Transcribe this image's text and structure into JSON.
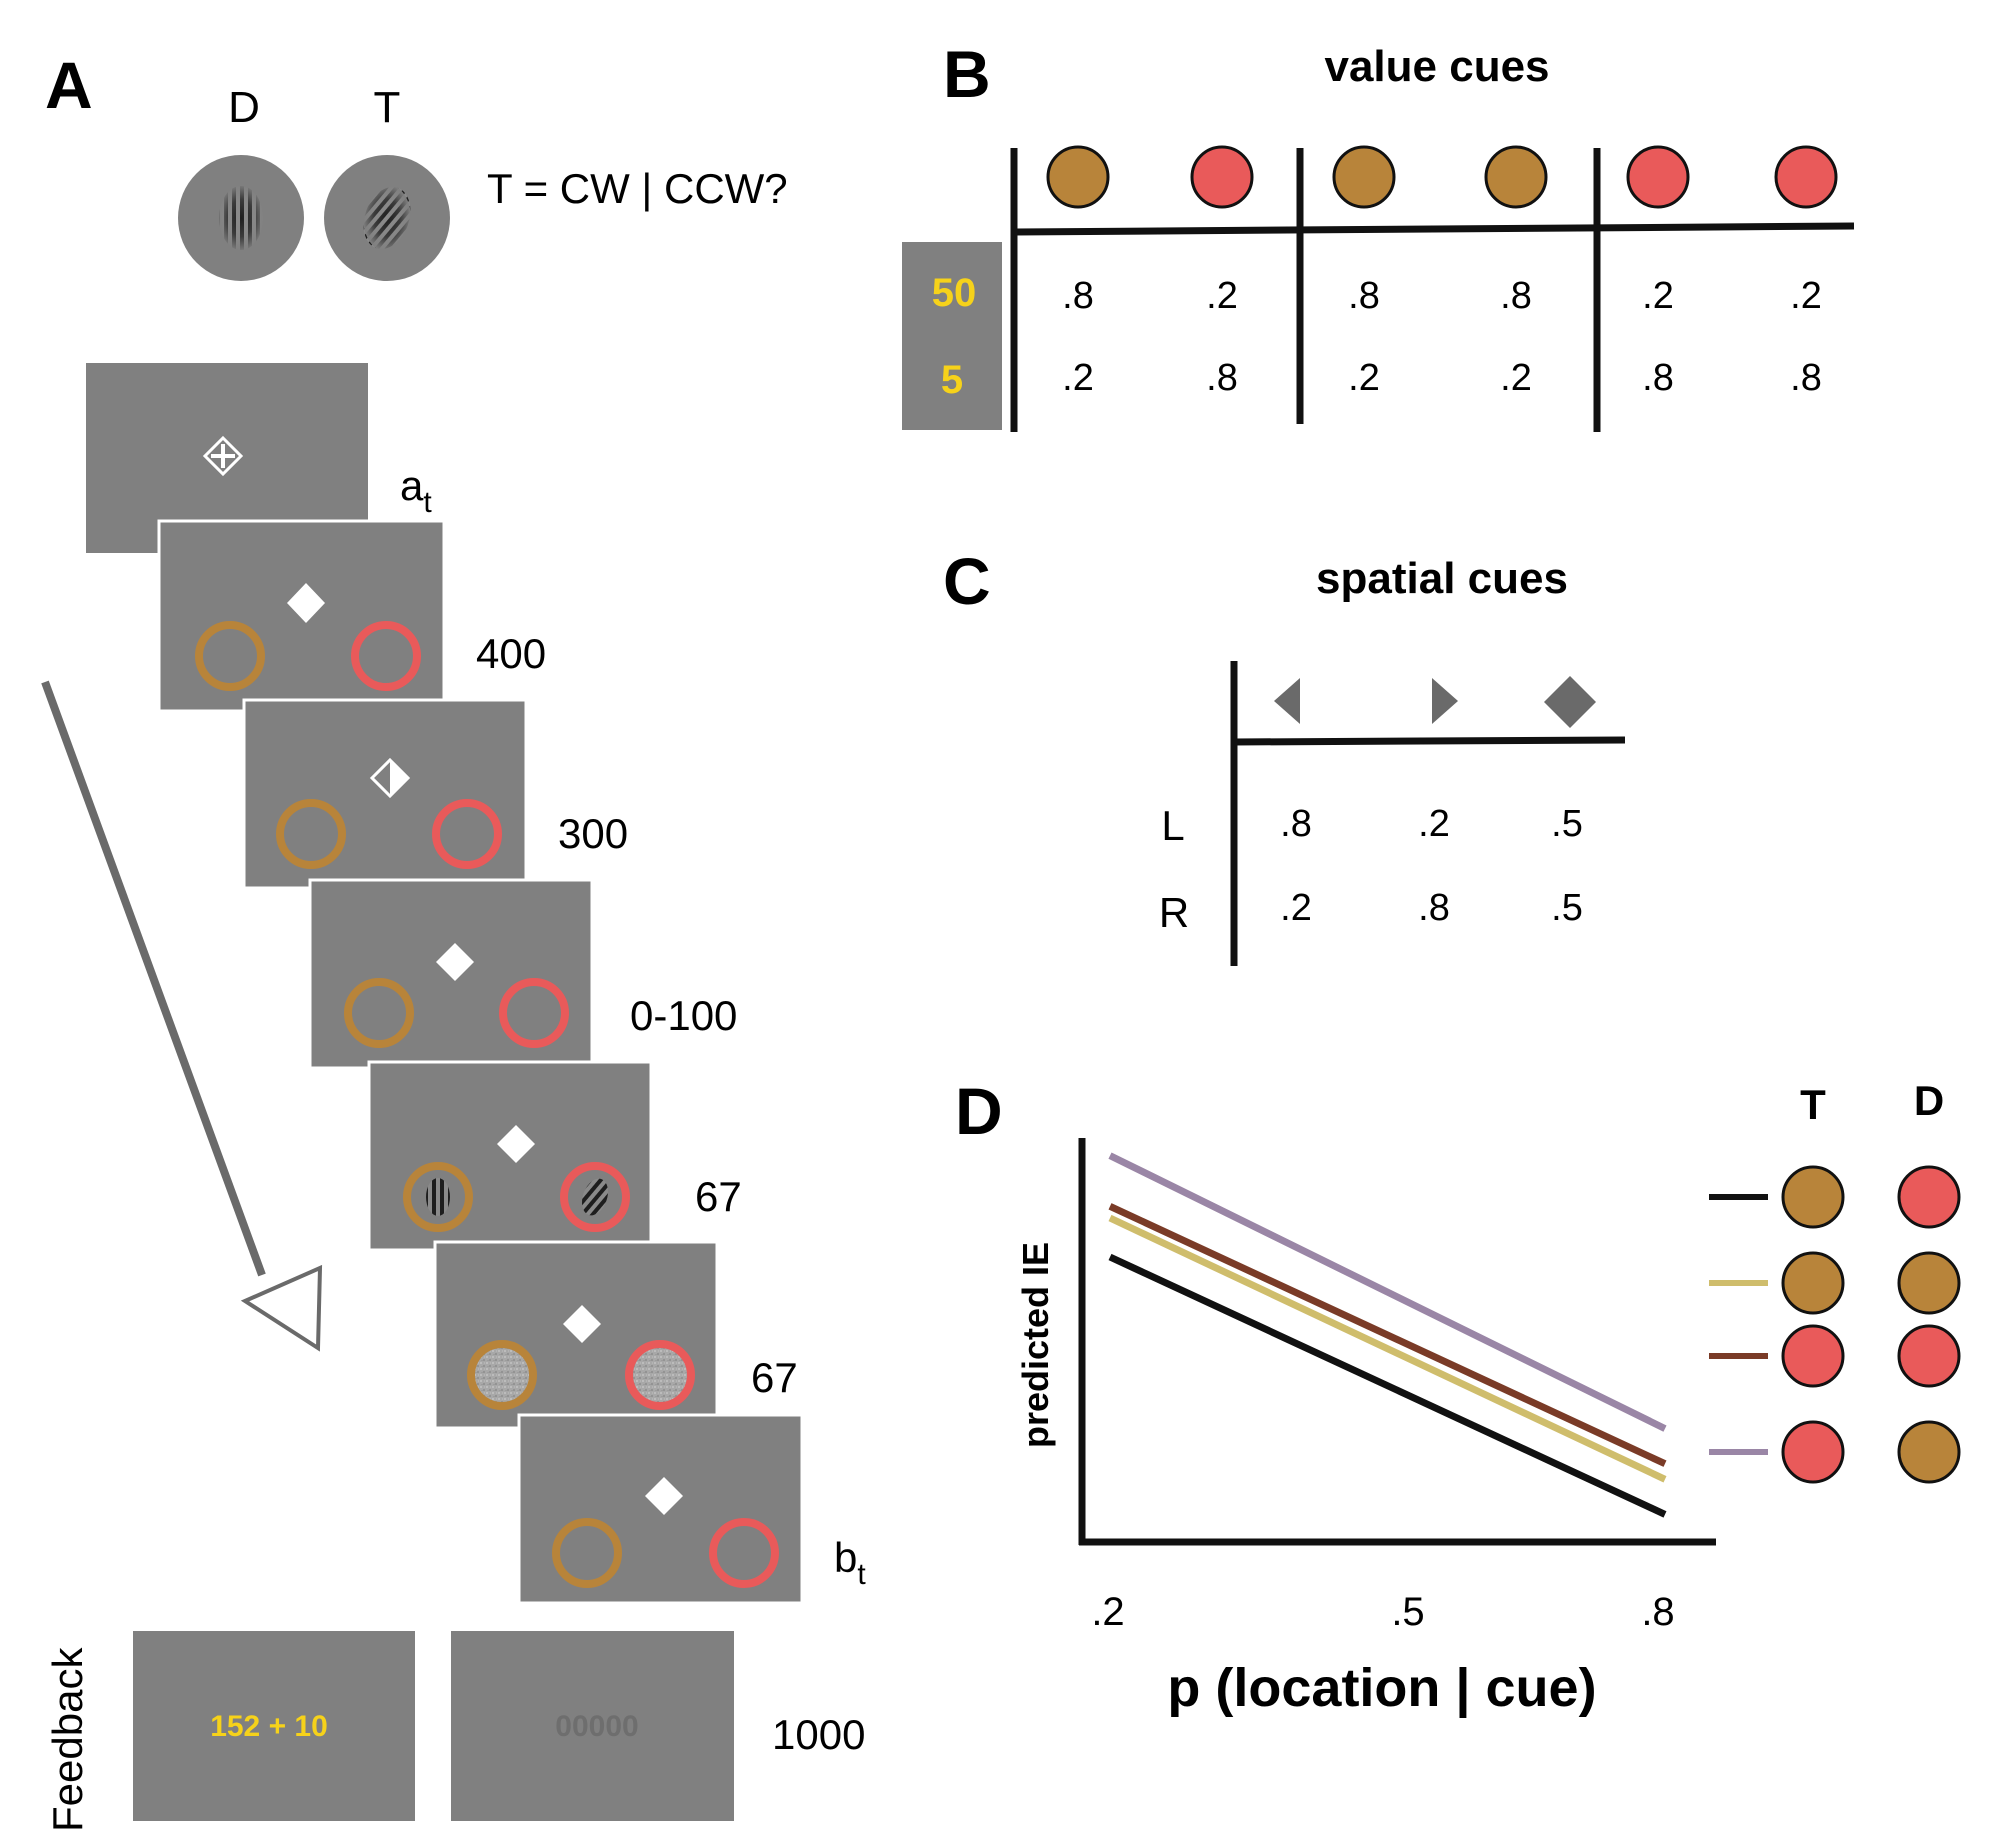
{
  "panels": {
    "a": "A",
    "b": "B",
    "c": "C",
    "d": "D"
  },
  "panel_a": {
    "distractor_label": "D",
    "target_label": "T",
    "question": "T = CW | CCW?",
    "a_label": "a",
    "a_sub": "t",
    "b_label": "b",
    "b_sub": "t",
    "durations": [
      "400",
      "300",
      "0-100",
      "67",
      "67"
    ],
    "feedback_label": "Feedback",
    "feedback_reward": "152 + 10",
    "feedback_zero": "00000",
    "feedback_duration": "1000"
  },
  "panel_b": {
    "title": "value cues",
    "row_labels": [
      "50",
      "5"
    ],
    "cue_colors": [
      "bronze",
      "red",
      "bronze",
      "bronze",
      "red",
      "red"
    ],
    "row_50": [
      ".8",
      ".2",
      ".8",
      ".8",
      ".2",
      ".2"
    ],
    "row_5": [
      ".2",
      ".8",
      ".2",
      ".2",
      ".8",
      ".8"
    ]
  },
  "panel_c": {
    "title": "spatial cues",
    "cue_icons": [
      "left-arrow-icon",
      "right-arrow-icon",
      "diamond-icon"
    ],
    "row_labels": [
      "L",
      "R"
    ],
    "row_L": [
      ".8",
      ".2",
      ".5"
    ],
    "row_R": [
      ".2",
      ".8",
      ".5"
    ]
  },
  "panel_d": {
    "legend_header_t": "T",
    "legend_header_d": "D"
  },
  "chart_data": {
    "type": "line",
    "xlabel": "p (location | cue)",
    "ylabel": "predicted IE",
    "x_ticks": [
      ".2",
      ".5",
      ".8"
    ],
    "xlim": [
      0.2,
      0.8
    ],
    "ylim": [
      0,
      1
    ],
    "grid": false,
    "legend_position": "right",
    "series": [
      {
        "color": "#9a86a6",
        "T": "red",
        "D": "bronze",
        "x": [
          0.2,
          0.8
        ],
        "y": [
          0.96,
          0.26
        ]
      },
      {
        "color": "#7a3b27",
        "T": "red",
        "D": "red",
        "x": [
          0.2,
          0.8
        ],
        "y": [
          0.83,
          0.17
        ]
      },
      {
        "color": "#cfbd6c",
        "T": "bronze",
        "D": "bronze",
        "x": [
          0.2,
          0.8
        ],
        "y": [
          0.8,
          0.13
        ]
      },
      {
        "color": "#111111",
        "T": "bronze",
        "D": "red",
        "x": [
          0.2,
          0.8
        ],
        "y": [
          0.7,
          0.04
        ]
      }
    ]
  },
  "colors": {
    "bronze": "#b8843a",
    "red": "#e95a5a",
    "screen_gray": "#808080",
    "reward_yellow": "#f6d21a",
    "arrow_gray": "#6a6a6a"
  }
}
